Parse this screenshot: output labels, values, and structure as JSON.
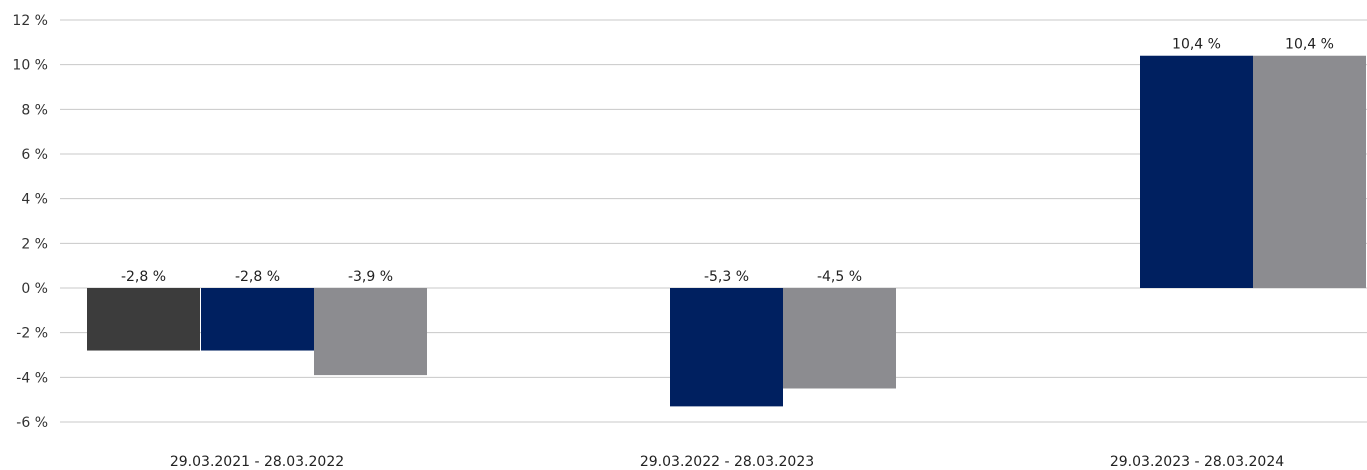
{
  "chart_data": {
    "type": "bar",
    "title": "",
    "xlabel": "",
    "ylabel": "",
    "ylim": [
      -6,
      12
    ],
    "y_ticks": [
      {
        "value": -6,
        "label": "-6 %"
      },
      {
        "value": -4,
        "label": "-4 %"
      },
      {
        "value": -2,
        "label": "-2 %"
      },
      {
        "value": 0,
        "label": "0 %"
      },
      {
        "value": 2,
        "label": "2 %"
      },
      {
        "value": 4,
        "label": "4 %"
      },
      {
        "value": 6,
        "label": "6 %"
      },
      {
        "value": 8,
        "label": "8 %"
      },
      {
        "value": 10,
        "label": "10 %"
      },
      {
        "value": 12,
        "label": "12 %"
      }
    ],
    "grid": true,
    "legend": "none",
    "categories": [
      "29.03.2021 - 28.03.2022",
      "29.03.2022 - 28.03.2023",
      "29.03.2023 - 28.03.2024"
    ],
    "series": [
      {
        "color": "#3c3c3c",
        "values": [
          -2.8,
          null,
          null
        ],
        "labels": [
          "-2,8 %",
          "",
          ""
        ]
      },
      {
        "color": "#002060",
        "values": [
          -2.8,
          -5.3,
          10.4
        ],
        "labels": [
          "-2,8 %",
          "-5,3 %",
          "10,4 %"
        ]
      },
      {
        "color": "#8c8c90",
        "values": [
          -3.9,
          -4.5,
          10.4
        ],
        "labels": [
          "-3,9 %",
          "-4,5 %",
          "10,4 %"
        ]
      }
    ]
  }
}
